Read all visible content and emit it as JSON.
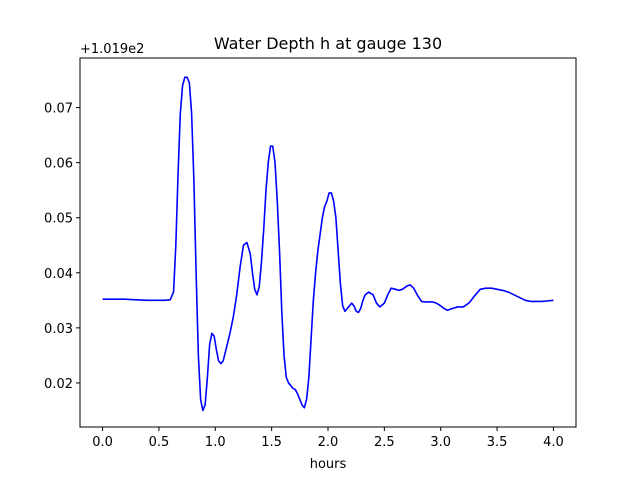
{
  "chart_data": {
    "type": "line",
    "title": "Water Depth h at gauge 130",
    "xlabel": "hours",
    "ylabel": "",
    "offset_label": "+1.019e2",
    "xlim": [
      -0.2,
      4.2
    ],
    "ylim": [
      0.012,
      0.079
    ],
    "xticks": [
      0.0,
      0.5,
      1.0,
      1.5,
      2.0,
      2.5,
      3.0,
      3.5,
      4.0
    ],
    "xtick_labels": [
      "0.0",
      "0.5",
      "1.0",
      "1.5",
      "2.0",
      "2.5",
      "3.0",
      "3.5",
      "4.0"
    ],
    "yticks": [
      0.02,
      0.03,
      0.04,
      0.05,
      0.06,
      0.07
    ],
    "ytick_labels": [
      "0.02",
      "0.03",
      "0.04",
      "0.05",
      "0.06",
      "0.07"
    ],
    "grid": false,
    "series": [
      {
        "color": "#0000ff",
        "x": [
          0.0,
          0.1,
          0.2,
          0.3,
          0.4,
          0.5,
          0.55,
          0.6,
          0.63,
          0.65,
          0.67,
          0.69,
          0.71,
          0.73,
          0.75,
          0.77,
          0.79,
          0.81,
          0.83,
          0.85,
          0.87,
          0.89,
          0.91,
          0.93,
          0.95,
          0.97,
          0.99,
          1.01,
          1.03,
          1.05,
          1.07,
          1.1,
          1.13,
          1.16,
          1.19,
          1.22,
          1.25,
          1.28,
          1.31,
          1.33,
          1.35,
          1.37,
          1.39,
          1.41,
          1.43,
          1.45,
          1.47,
          1.49,
          1.51,
          1.53,
          1.55,
          1.57,
          1.59,
          1.61,
          1.63,
          1.65,
          1.67,
          1.69,
          1.71,
          1.73,
          1.75,
          1.77,
          1.79,
          1.81,
          1.83,
          1.85,
          1.87,
          1.89,
          1.91,
          1.93,
          1.95,
          1.97,
          1.99,
          2.01,
          2.03,
          2.05,
          2.07,
          2.09,
          2.11,
          2.13,
          2.15,
          2.17,
          2.19,
          2.21,
          2.23,
          2.25,
          2.27,
          2.29,
          2.31,
          2.33,
          2.36,
          2.4,
          2.43,
          2.46,
          2.5,
          2.53,
          2.56,
          2.6,
          2.63,
          2.66,
          2.7,
          2.73,
          2.76,
          2.8,
          2.83,
          2.86,
          2.9,
          2.93,
          2.96,
          3.0,
          3.03,
          3.06,
          3.1,
          3.15,
          3.2,
          3.25,
          3.3,
          3.35,
          3.4,
          3.45,
          3.5,
          3.55,
          3.6,
          3.65,
          3.7,
          3.75,
          3.8,
          3.85,
          3.9,
          3.95,
          4.0
        ],
        "y": [
          0.0352,
          0.0352,
          0.0352,
          0.0351,
          0.035,
          0.035,
          0.035,
          0.0351,
          0.0365,
          0.045,
          0.058,
          0.069,
          0.074,
          0.0755,
          0.0755,
          0.0745,
          0.069,
          0.057,
          0.04,
          0.025,
          0.017,
          0.015,
          0.016,
          0.021,
          0.027,
          0.029,
          0.0285,
          0.026,
          0.024,
          0.0235,
          0.024,
          0.0265,
          0.029,
          0.032,
          0.036,
          0.041,
          0.045,
          0.0455,
          0.0435,
          0.04,
          0.037,
          0.036,
          0.0375,
          0.042,
          0.048,
          0.055,
          0.06,
          0.063,
          0.063,
          0.06,
          0.053,
          0.044,
          0.033,
          0.025,
          0.021,
          0.02,
          0.0195,
          0.019,
          0.0188,
          0.018,
          0.017,
          0.016,
          0.0155,
          0.017,
          0.021,
          0.028,
          0.035,
          0.04,
          0.044,
          0.047,
          0.05,
          0.052,
          0.053,
          0.0545,
          0.0545,
          0.053,
          0.05,
          0.044,
          0.038,
          0.034,
          0.033,
          0.0335,
          0.034,
          0.0345,
          0.034,
          0.033,
          0.0328,
          0.0335,
          0.035,
          0.036,
          0.0365,
          0.036,
          0.0345,
          0.0338,
          0.0345,
          0.036,
          0.0372,
          0.037,
          0.0368,
          0.037,
          0.0376,
          0.0378,
          0.0372,
          0.0357,
          0.0348,
          0.0347,
          0.0347,
          0.0347,
          0.0345,
          0.034,
          0.0335,
          0.0332,
          0.0335,
          0.0338,
          0.0338,
          0.0345,
          0.0358,
          0.037,
          0.0372,
          0.0372,
          0.037,
          0.0368,
          0.0365,
          0.036,
          0.0355,
          0.035,
          0.0348,
          0.0348,
          0.0348,
          0.0349,
          0.035
        ]
      }
    ]
  }
}
